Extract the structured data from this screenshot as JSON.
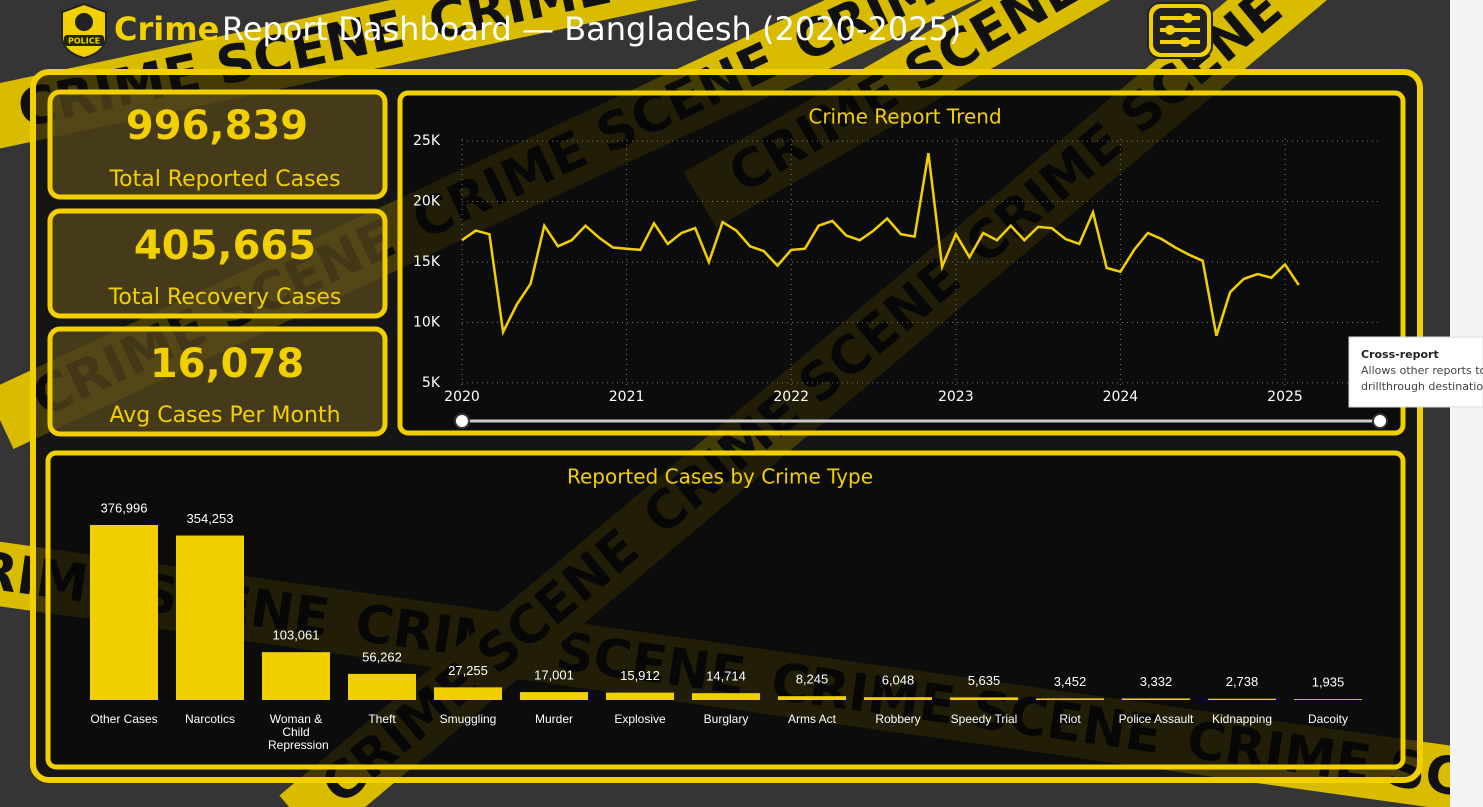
{
  "header": {
    "title_accent": "Crime",
    "title_rest": "Report Dashboard — Bangladesh (2020-2025)",
    "badge_text": "POLICE"
  },
  "background_text": "CRIME SCENE",
  "kpis": [
    {
      "value": "996,839",
      "label": "Total Reported Cases"
    },
    {
      "value": "405,665",
      "label": "Total Recovery Cases"
    },
    {
      "value": "16,078",
      "label": "Avg Cases Per Month"
    }
  ],
  "tooltip": {
    "title": "Cross-report",
    "lines": [
      "Allows other reports to",
      "drillthrough destination"
    ]
  },
  "chart_data": [
    {
      "type": "line",
      "title": "Crime Report Trend",
      "color": "#f2d000",
      "grid": true,
      "categories": [
        "2020",
        null,
        null,
        null,
        null,
        null,
        null,
        null,
        null,
        null,
        null,
        null,
        "2021",
        null,
        null,
        null,
        null,
        null,
        null,
        null,
        null,
        null,
        null,
        null,
        "2022",
        null,
        null,
        null,
        null,
        null,
        null,
        null,
        null,
        null,
        null,
        null,
        "2023",
        null,
        null,
        null,
        null,
        null,
        null,
        null,
        null,
        null,
        null,
        null,
        "2024",
        null,
        null,
        null,
        null,
        null,
        null,
        null,
        null,
        null,
        null,
        null,
        "2025",
        null
      ],
      "values": [
        16800,
        17600,
        17300,
        9200,
        11500,
        13200,
        18000,
        16300,
        16800,
        18000,
        17000,
        16200,
        16100,
        16000,
        18200,
        16500,
        17400,
        17800,
        15000,
        18300,
        17600,
        16300,
        15900,
        14700,
        16000,
        16100,
        18000,
        18400,
        17200,
        16800,
        17600,
        18600,
        17300,
        17100,
        24000,
        14600,
        17300,
        15400,
        17400,
        16800,
        18000,
        16800,
        17900,
        17800,
        16900,
        16500,
        19100,
        14500,
        14200,
        16000,
        17400,
        16900,
        16200,
        15600,
        15100,
        8900,
        12500,
        13600,
        14000,
        13700,
        14800,
        13100
      ],
      "ylim": [
        4000,
        26000
      ],
      "yticks": [
        {
          "value": 5000,
          "label": "5K"
        },
        {
          "value": 10000,
          "label": "10K"
        },
        {
          "value": 15000,
          "label": "15K"
        },
        {
          "value": 20000,
          "label": "20K"
        },
        {
          "value": 25000,
          "label": "25K"
        }
      ]
    },
    {
      "type": "bar",
      "title": "Reported Cases by Crime Type",
      "color": "#f2d000",
      "categories": [
        "Other Cases",
        "Narcotics",
        "Woman & Child Repression",
        "Theft",
        "Smuggling",
        "Murder",
        "Explosive",
        "Burglary",
        "Arms Act",
        "Robbery",
        "Speedy Trial",
        "Riot",
        "Police Assault",
        "Kidnapping",
        "Dacoity"
      ],
      "values": [
        376996,
        354253,
        103061,
        56262,
        27255,
        17001,
        15912,
        14714,
        8245,
        6048,
        5635,
        3452,
        3332,
        2738,
        1935
      ],
      "value_labels": [
        "376,996",
        "354,253",
        "103,061",
        "56,262",
        "27,255",
        "17,001",
        "15,912",
        "14,714",
        "8,245",
        "6,048",
        "5,635",
        "3,452",
        "3,332",
        "2,738",
        "1,935"
      ]
    }
  ]
}
